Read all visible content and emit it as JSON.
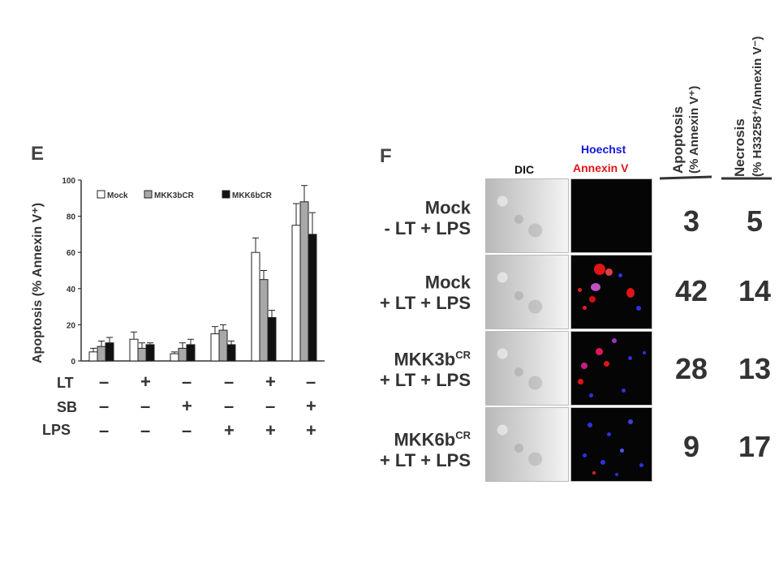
{
  "panel_e": {
    "letter": "E",
    "ylabel": "Apoptosis (% Annexin V⁺)",
    "row_labels": [
      "LT",
      "SB",
      "LPS"
    ],
    "signs": [
      [
        "–",
        "+",
        "–",
        "–",
        "+",
        "–"
      ],
      [
        "–",
        "–",
        "+",
        "–",
        "–",
        "+"
      ],
      [
        "–",
        "–",
        "–",
        "+",
        "+",
        "+"
      ]
    ]
  },
  "chart_data": {
    "type": "bar",
    "ylabel": "Apoptosis (% Annexin V⁺)",
    "ylim": [
      0,
      100
    ],
    "yticks": [
      "0",
      "20",
      "40",
      "60",
      "80",
      "100"
    ],
    "legend_position": "top",
    "series": [
      {
        "name": "Mock",
        "color": "#ffffff",
        "values": [
          5,
          12,
          4,
          15,
          60,
          75
        ],
        "errors": [
          2,
          4,
          1,
          4,
          8,
          12
        ]
      },
      {
        "name": "MKK3bCR",
        "color": "#a8a8a8",
        "values": [
          8,
          7,
          7,
          17,
          45,
          88
        ],
        "errors": [
          3,
          3,
          3,
          3,
          5,
          9
        ]
      },
      {
        "name": "MKK6bCR",
        "color": "#111111",
        "values": [
          10,
          9,
          9,
          9,
          24,
          70
        ],
        "errors": [
          3,
          1,
          3,
          2,
          4,
          12
        ]
      }
    ]
  },
  "panel_f": {
    "letter": "F",
    "col_dic": "DIC",
    "col_hoechst": "Hoechst",
    "col_annexin": "Annexin V",
    "col_apoptosis": "Apoptosis",
    "col_apoptosis_unit": "(% Annexin V⁺)",
    "col_necrosis": "Necrosis",
    "col_necrosis_unit": "(% H33258⁺/Annexin V⁻)",
    "rows": [
      {
        "name": "Mock",
        "sup": "",
        "treatment": "- LT + LPS",
        "apoptosis": "3",
        "necrosis": "5"
      },
      {
        "name": "Mock",
        "sup": "",
        "treatment": "+ LT + LPS",
        "apoptosis": "42",
        "necrosis": "14"
      },
      {
        "name": "MKK3b",
        "sup": "CR",
        "treatment": "+ LT + LPS",
        "apoptosis": "28",
        "necrosis": "13"
      },
      {
        "name": "MKK6b",
        "sup": "CR",
        "treatment": "+ LT + LPS",
        "apoptosis": "9",
        "necrosis": "17"
      }
    ],
    "colors": {
      "hoechst": "#1515e0",
      "annexin": "#e01515"
    }
  }
}
